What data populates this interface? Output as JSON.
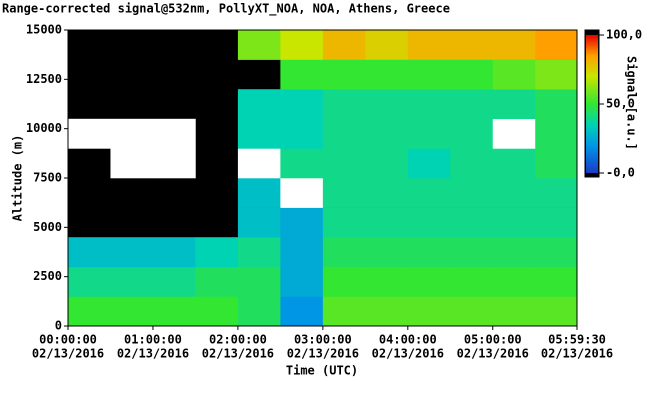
{
  "chart_data": {
    "type": "heatmap",
    "title": "Range-corrected signal@532nm, PollyXT_NOA, NOA, Athens, Greece",
    "xlabel": "Time (UTC)",
    "ylabel": "Altitude (m)",
    "colorbar_label": "Signal [a.u.]",
    "xlim": [
      0,
      21570
    ],
    "ylim": [
      0,
      15000
    ],
    "xticks": [
      {
        "value": 0,
        "label": [
          "00:00:00",
          "02/13/2016"
        ]
      },
      {
        "value": 3600,
        "label": [
          "01:00:00",
          "02/13/2016"
        ]
      },
      {
        "value": 7200,
        "label": [
          "02:00:00",
          "02/13/2016"
        ]
      },
      {
        "value": 10800,
        "label": [
          "03:00:00",
          "02/13/2016"
        ]
      },
      {
        "value": 14400,
        "label": [
          "04:00:00",
          "02/13/2016"
        ]
      },
      {
        "value": 18000,
        "label": [
          "05:00:00",
          "02/13/2016"
        ]
      },
      {
        "value": 21570,
        "label": [
          "05:59:30",
          "02/13/2016"
        ]
      }
    ],
    "yticks": [
      0,
      2500,
      5000,
      7500,
      10000,
      12500,
      15000
    ],
    "clim": [
      0,
      100
    ],
    "cticks": [
      {
        "value": 100,
        "label": "100,0"
      },
      {
        "value": 50,
        "label": "50,0"
      },
      {
        "value": 0,
        "label": "-0,0"
      }
    ],
    "xbins": [
      0,
      1800,
      3600,
      5400,
      7200,
      9000,
      10800,
      12600,
      14400,
      16200,
      18000,
      19800,
      21570
    ],
    "ybins": [
      0,
      1500,
      3000,
      4500,
      6000,
      7500,
      9000,
      10500,
      12000,
      13500,
      15000
    ],
    "z": [
      [
        50,
        50,
        50,
        50,
        45,
        20,
        55,
        55,
        55,
        55,
        55,
        55
      ],
      [
        40,
        40,
        40,
        45,
        45,
        25,
        50,
        50,
        50,
        50,
        50,
        50
      ],
      [
        30,
        30,
        30,
        35,
        40,
        25,
        45,
        45,
        45,
        45,
        45,
        45
      ],
      [
        null,
        null,
        null,
        null,
        30,
        25,
        40,
        40,
        40,
        40,
        40,
        40
      ],
      [
        null,
        null,
        null,
        null,
        30,
        110,
        40,
        40,
        40,
        40,
        40,
        40
      ],
      [
        null,
        110,
        110,
        null,
        110,
        40,
        40,
        40,
        35,
        40,
        40,
        45
      ],
      [
        110,
        110,
        110,
        null,
        35,
        35,
        40,
        40,
        40,
        40,
        110,
        45
      ],
      [
        null,
        null,
        null,
        null,
        35,
        35,
        40,
        40,
        40,
        40,
        40,
        45
      ],
      [
        null,
        null,
        null,
        null,
        null,
        50,
        50,
        50,
        50,
        50,
        55,
        60
      ],
      [
        null,
        null,
        null,
        null,
        60,
        70,
        80,
        75,
        80,
        80,
        80,
        85
      ]
    ]
  }
}
